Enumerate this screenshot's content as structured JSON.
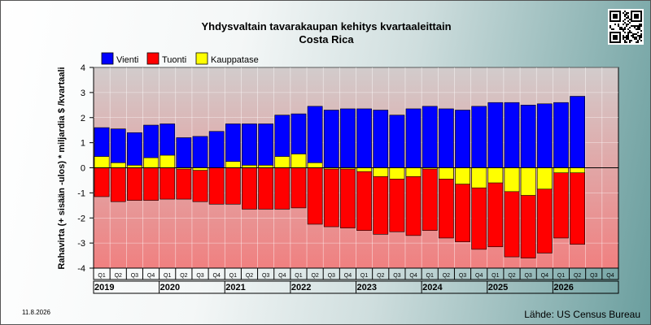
{
  "chart_data": {
    "type": "bar",
    "title": "Yhdysvaltain tavarakaupan kehitys kvartaaleittain",
    "subtitle": "Costa Rica",
    "ylabel": "Rahavirta (+ sisään -ulos)  * miljardia $ /kvartaali",
    "ylim": [
      -4,
      4
    ],
    "yticks": [
      4,
      3,
      2,
      1,
      0,
      -1,
      -2,
      -3,
      -4
    ],
    "legend_position": "top-left",
    "grid": true,
    "quarter_labels": [
      "Q1",
      "Q2",
      "Q3",
      "Q4",
      "Q1",
      "Q2",
      "Q3",
      "Q4",
      "Q1",
      "Q2",
      "Q3",
      "Q4",
      "Q1",
      "Q2",
      "Q3",
      "Q4",
      "Q1",
      "Q2",
      "Q3",
      "Q4",
      "Q1",
      "Q2",
      "Q3",
      "Q4",
      "Q1",
      "Q2",
      "Q3",
      "Q4",
      "Q1",
      "Q2",
      "Q3",
      "Q4"
    ],
    "years": [
      "2019",
      "2020",
      "2021",
      "2022",
      "2023",
      "2024",
      "2025",
      "2026"
    ],
    "series": [
      {
        "name": "Vienti",
        "color": "#0000ff",
        "values": [
          1.6,
          1.55,
          1.4,
          1.7,
          1.75,
          1.2,
          1.25,
          1.45,
          1.75,
          1.75,
          1.75,
          2.1,
          2.15,
          2.45,
          2.3,
          2.35,
          2.35,
          2.3,
          2.1,
          2.35,
          2.45,
          2.35,
          2.3,
          2.45,
          2.6,
          2.6,
          2.5,
          2.55,
          2.6,
          2.85,
          null,
          null
        ]
      },
      {
        "name": "Tuonti",
        "color": "#ff0000",
        "values": [
          -1.15,
          -1.35,
          -1.3,
          -1.3,
          -1.25,
          -1.25,
          -1.35,
          -1.45,
          -1.45,
          -1.65,
          -1.65,
          -1.65,
          -1.6,
          -2.25,
          -2.35,
          -2.4,
          -2.5,
          -2.65,
          -2.55,
          -2.7,
          -2.5,
          -2.8,
          -2.95,
          -3.25,
          -3.15,
          -3.55,
          -3.6,
          -3.4,
          -2.8,
          -3.05,
          null,
          null
        ]
      },
      {
        "name": "Kauppatase",
        "color": "#ffff00",
        "values": [
          0.45,
          0.2,
          0.1,
          0.4,
          0.5,
          -0.05,
          -0.1,
          0.0,
          0.25,
          0.1,
          0.1,
          0.45,
          0.55,
          0.2,
          -0.05,
          -0.05,
          -0.15,
          -0.35,
          -0.45,
          -0.35,
          -0.05,
          -0.45,
          -0.65,
          -0.8,
          -0.6,
          -0.95,
          -1.1,
          -0.85,
          -0.2,
          -0.2,
          null,
          null
        ]
      }
    ]
  },
  "footer": {
    "date": "11.8.2026",
    "source": "Lähde: US Census Bureau"
  }
}
